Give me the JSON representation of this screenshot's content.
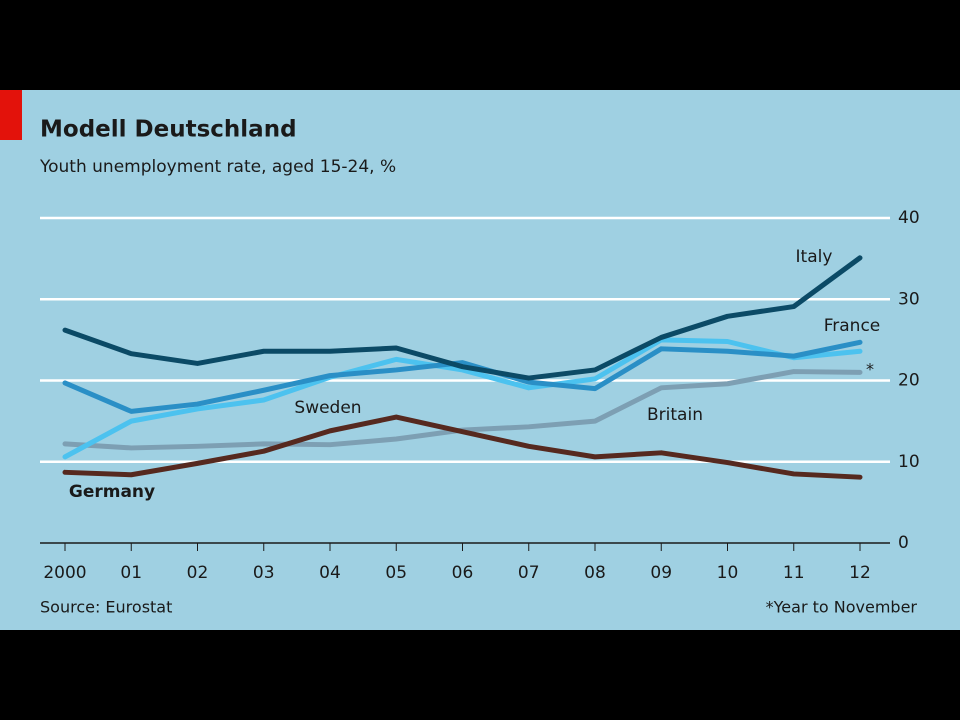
{
  "chart_data": {
    "type": "line",
    "title": "Modell Deutschland",
    "subtitle": "Youth unemployment rate, aged 15-24, %",
    "categories": [
      "2000",
      "01",
      "02",
      "03",
      "04",
      "05",
      "06",
      "07",
      "08",
      "09",
      "10",
      "11",
      "12"
    ],
    "series": [
      {
        "name": "Britain",
        "color": "#7d9fb3",
        "values": [
          12.2,
          11.7,
          11.9,
          12.2,
          12.1,
          12.8,
          13.9,
          14.3,
          15.0,
          19.1,
          19.6,
          21.1,
          21.0
        ]
      },
      {
        "name": "Germany",
        "color": "#56291f",
        "values": [
          8.7,
          8.4,
          9.8,
          11.3,
          13.8,
          15.5,
          13.7,
          11.9,
          10.6,
          11.1,
          9.9,
          8.5,
          8.1
        ]
      },
      {
        "name": "Sweden",
        "color": "#4cc2ef",
        "values": [
          10.6,
          15.0,
          16.5,
          17.6,
          20.4,
          22.6,
          21.3,
          19.1,
          20.2,
          25.0,
          24.8,
          22.8,
          23.6
        ]
      },
      {
        "name": "France",
        "color": "#2a8fc6",
        "values": [
          19.7,
          16.2,
          17.1,
          18.8,
          20.6,
          21.3,
          22.2,
          19.8,
          19.0,
          23.9,
          23.6,
          23.0,
          24.7
        ]
      },
      {
        "name": "Italy",
        "color": "#0b4a66",
        "values": [
          26.2,
          23.3,
          22.1,
          23.6,
          23.6,
          24.0,
          21.7,
          20.3,
          21.3,
          25.3,
          27.9,
          29.1,
          35.1
        ]
      }
    ],
    "ylim": [
      0,
      40
    ],
    "yticks": [
      0,
      10,
      20,
      30,
      40
    ],
    "grid": true,
    "annotation": "*",
    "source": "Source: Eurostat",
    "footnote": "*Year to November"
  }
}
